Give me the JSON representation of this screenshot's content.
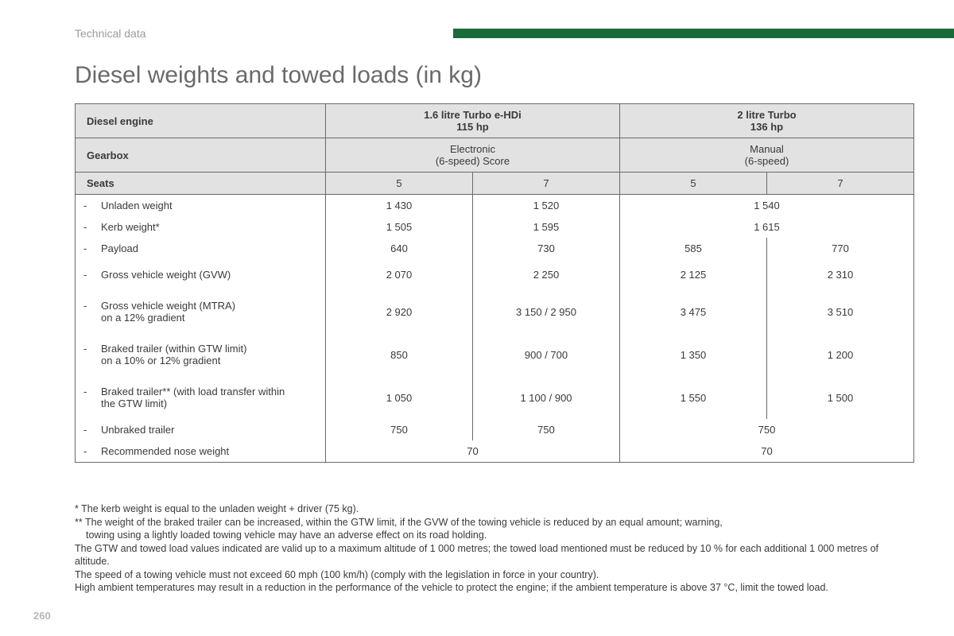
{
  "section": "Technical data",
  "title": "Diesel weights and towed loads (in kg)",
  "page_number": "260",
  "colors": {
    "header_band": "#1a6b3a",
    "table_bg": "#e2e2e2",
    "border": "#6a6a6a",
    "text": "#3a3a3a",
    "muted": "#9b9b9b"
  },
  "table": {
    "headers": {
      "row_label": "Diesel engine",
      "engine1_line1": "1.6 litre Turbo e-HDi",
      "engine1_line2": "115 hp",
      "engine2_line1": "2 litre Turbo",
      "engine2_line2": "136 hp",
      "gearbox_label": "Gearbox",
      "gearbox1_line1": "Electronic",
      "gearbox1_line2": "(6-speed) Score",
      "gearbox2_line1": "Manual",
      "gearbox2_line2": "(6-speed)",
      "seats_label": "Seats",
      "seats_col1": "5",
      "seats_col2": "7",
      "seats_col3": "5",
      "seats_col4": "7"
    },
    "rows": [
      {
        "label": "Unladen weight",
        "c": [
          "1 430",
          "1 520",
          "1 540",
          ""
        ],
        "merge": [
          [
            2,
            3
          ]
        ]
      },
      {
        "label": "Kerb weight*",
        "c": [
          "1 505",
          "1 595",
          "1 615",
          ""
        ],
        "merge": [
          [
            2,
            3
          ]
        ]
      },
      {
        "label": "Payload",
        "c": [
          "640",
          "730",
          "585",
          "770"
        ],
        "merge": []
      },
      {
        "label": "Gross vehicle weight (GVW)",
        "c": [
          "2 070",
          "2 250",
          "2 125",
          "2 310"
        ],
        "merge": [],
        "tall": true
      },
      {
        "label": "Gross vehicle weight (MTRA)",
        "label2": "on a 12% gradient",
        "c": [
          "2 920",
          "3 150 / 2 950",
          "3 475",
          "3 510"
        ],
        "merge": [],
        "tall": true
      },
      {
        "label": "Braked trailer (within GTW limit)",
        "label2": "on a 10% or 12% gradient",
        "c": [
          "850",
          "900 / 700",
          "1 350",
          "1 200"
        ],
        "merge": [],
        "tall": true
      },
      {
        "label": "Braked trailer** (with load transfer within",
        "label2": "the GTW limit)",
        "c": [
          "1 050",
          "1 100 / 900",
          "1 550",
          "1 500"
        ],
        "merge": [],
        "tall": true
      },
      {
        "label": "Unbraked trailer",
        "c": [
          "750",
          "750",
          "750",
          ""
        ],
        "merge": [
          [
            2,
            3
          ]
        ]
      },
      {
        "label": "Recommended nose weight",
        "c": [
          "70",
          "",
          "70",
          ""
        ],
        "merge": [
          [
            0,
            1
          ],
          [
            2,
            3
          ]
        ]
      }
    ]
  },
  "footnotes": {
    "f1": "* The kerb weight is equal to the unladen weight + driver (75 kg).",
    "f2a": "** The weight of the braked trailer can be increased, within the GTW limit, if the GVW of the towing vehicle is reduced by an equal amount; warning,",
    "f2b": "towing using a lightly loaded towing vehicle may have an adverse effect on its road holding.",
    "f3": "The GTW and towed load values indicated are valid up to a maximum altitude of 1 000 metres; the towed load mentioned must be reduced by 10 % for each additional 1 000 metres of altitude.",
    "f4": "The speed of a towing vehicle must not exceed 60 mph (100 km/h) (comply with the legislation in force in your country).",
    "f5": "High ambient temperatures may result in a reduction in the performance of the vehicle to protect the engine; if the ambient temperature is above 37 °C, limit the towed load."
  }
}
